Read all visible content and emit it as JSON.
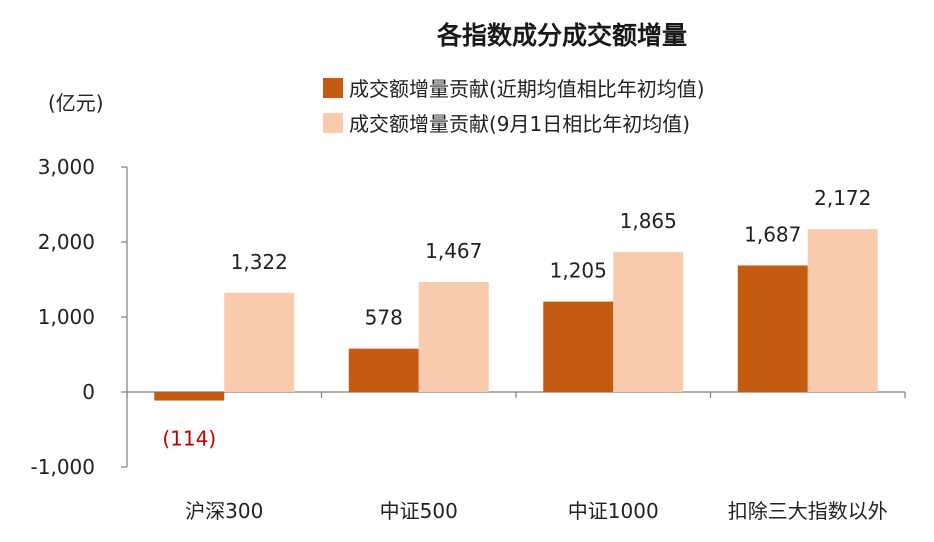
{
  "chart_data": {
    "type": "bar",
    "title": "各指数成分成交额增量",
    "unit_label": "(亿元)",
    "categories": [
      "沪深300",
      "中证500",
      "中证1000",
      "扣除三大指数以外"
    ],
    "series": [
      {
        "name": "成交额增量贡献(近期均值相比年初均值)",
        "color": "#c55a11",
        "values": [
          -114,
          578,
          1205,
          1687
        ],
        "labels": [
          "(114)",
          "578",
          "1,205",
          "1,687"
        ]
      },
      {
        "name": "成交额增量贡献(9月1日相比年初均值)",
        "color": "#f8cbad",
        "values": [
          1322,
          1467,
          1865,
          2172
        ],
        "labels": [
          "1,322",
          "1,467",
          "1,865",
          "2,172"
        ]
      }
    ],
    "yticks": [
      -1000,
      0,
      1000,
      2000,
      3000
    ],
    "ytick_labels": [
      "-1,000",
      "0",
      "1,000",
      "2,000",
      "3,000"
    ],
    "ylim": [
      -1000,
      3000
    ],
    "negative_label_color": "#c00000",
    "grid": false,
    "legend_position": "top"
  }
}
